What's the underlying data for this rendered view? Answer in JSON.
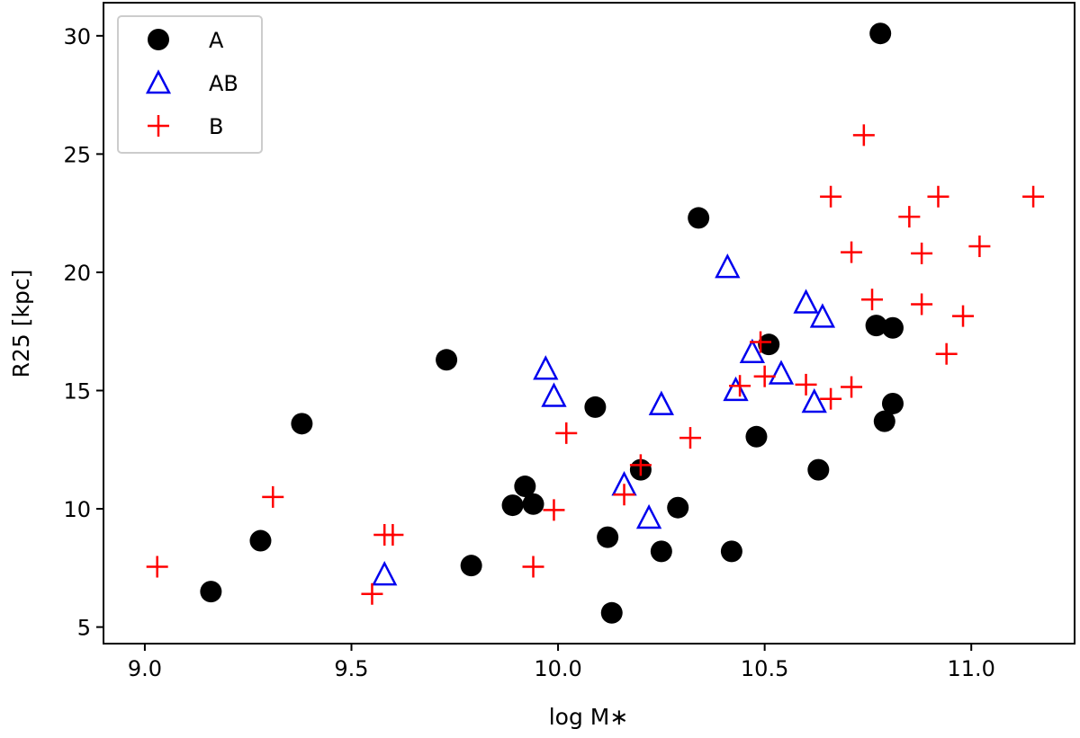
{
  "chart_data": {
    "type": "scatter",
    "title": "",
    "xlabel": "log M∗",
    "ylabel": "R25 [kpc]",
    "xlim": [
      8.9,
      11.25
    ],
    "ylim": [
      4.3,
      31.4
    ],
    "xticks": [
      {
        "value": 9.0,
        "label": "9.0"
      },
      {
        "value": 9.5,
        "label": "9.5"
      },
      {
        "value": 10.0,
        "label": "10.0"
      },
      {
        "value": 10.5,
        "label": "10.5"
      },
      {
        "value": 11.0,
        "label": "11.0"
      }
    ],
    "yticks": [
      {
        "value": 5,
        "label": "5"
      },
      {
        "value": 10,
        "label": "10"
      },
      {
        "value": 15,
        "label": "15"
      },
      {
        "value": 20,
        "label": "20"
      },
      {
        "value": 25,
        "label": "25"
      },
      {
        "value": 30,
        "label": "30"
      }
    ],
    "legend_position": "top-left",
    "series": [
      {
        "name": "A",
        "marker": "circle",
        "color": "#000000",
        "filled": true,
        "points": [
          [
            9.16,
            6.5
          ],
          [
            9.28,
            8.65
          ],
          [
            9.38,
            13.6
          ],
          [
            9.73,
            16.3
          ],
          [
            9.79,
            7.6
          ],
          [
            9.89,
            10.15
          ],
          [
            9.92,
            10.95
          ],
          [
            9.94,
            10.2
          ],
          [
            10.09,
            14.3
          ],
          [
            10.12,
            8.8
          ],
          [
            10.13,
            5.6
          ],
          [
            10.2,
            11.65
          ],
          [
            10.25,
            8.2
          ],
          [
            10.29,
            10.05
          ],
          [
            10.34,
            22.3
          ],
          [
            10.42,
            8.2
          ],
          [
            10.48,
            13.05
          ],
          [
            10.51,
            16.95
          ],
          [
            10.63,
            11.65
          ],
          [
            10.77,
            17.75
          ],
          [
            10.78,
            30.1
          ],
          [
            10.79,
            13.7
          ],
          [
            10.81,
            14.45
          ],
          [
            10.81,
            17.65
          ]
        ]
      },
      {
        "name": "AB",
        "marker": "triangle",
        "color": "#0000ee",
        "filled": false,
        "points": [
          [
            9.58,
            7.2
          ],
          [
            9.97,
            15.9
          ],
          [
            9.99,
            14.75
          ],
          [
            10.16,
            11.0
          ],
          [
            10.22,
            9.6
          ],
          [
            10.25,
            14.4
          ],
          [
            10.41,
            20.2
          ],
          [
            10.43,
            15.0
          ],
          [
            10.47,
            16.6
          ],
          [
            10.54,
            15.7
          ],
          [
            10.6,
            18.7
          ],
          [
            10.62,
            14.5
          ],
          [
            10.64,
            18.1
          ]
        ]
      },
      {
        "name": "B",
        "marker": "plus",
        "color": "#ff0000",
        "filled": false,
        "points": [
          [
            9.03,
            7.55
          ],
          [
            9.31,
            10.5
          ],
          [
            9.55,
            6.4
          ],
          [
            9.58,
            8.9
          ],
          [
            9.6,
            8.9
          ],
          [
            9.94,
            7.55
          ],
          [
            9.99,
            9.95
          ],
          [
            10.02,
            13.2
          ],
          [
            10.16,
            10.6
          ],
          [
            10.2,
            11.85
          ],
          [
            10.32,
            13.0
          ],
          [
            10.44,
            15.2
          ],
          [
            10.49,
            17.05
          ],
          [
            10.5,
            15.6
          ],
          [
            10.6,
            15.25
          ],
          [
            10.66,
            14.65
          ],
          [
            10.66,
            23.2
          ],
          [
            10.71,
            15.15
          ],
          [
            10.71,
            20.85
          ],
          [
            10.74,
            25.8
          ],
          [
            10.76,
            18.85
          ],
          [
            10.85,
            22.35
          ],
          [
            10.88,
            18.65
          ],
          [
            10.88,
            20.8
          ],
          [
            10.92,
            23.2
          ],
          [
            10.94,
            16.55
          ],
          [
            10.98,
            18.15
          ],
          [
            11.02,
            21.1
          ],
          [
            11.15,
            23.2
          ]
        ]
      }
    ]
  }
}
